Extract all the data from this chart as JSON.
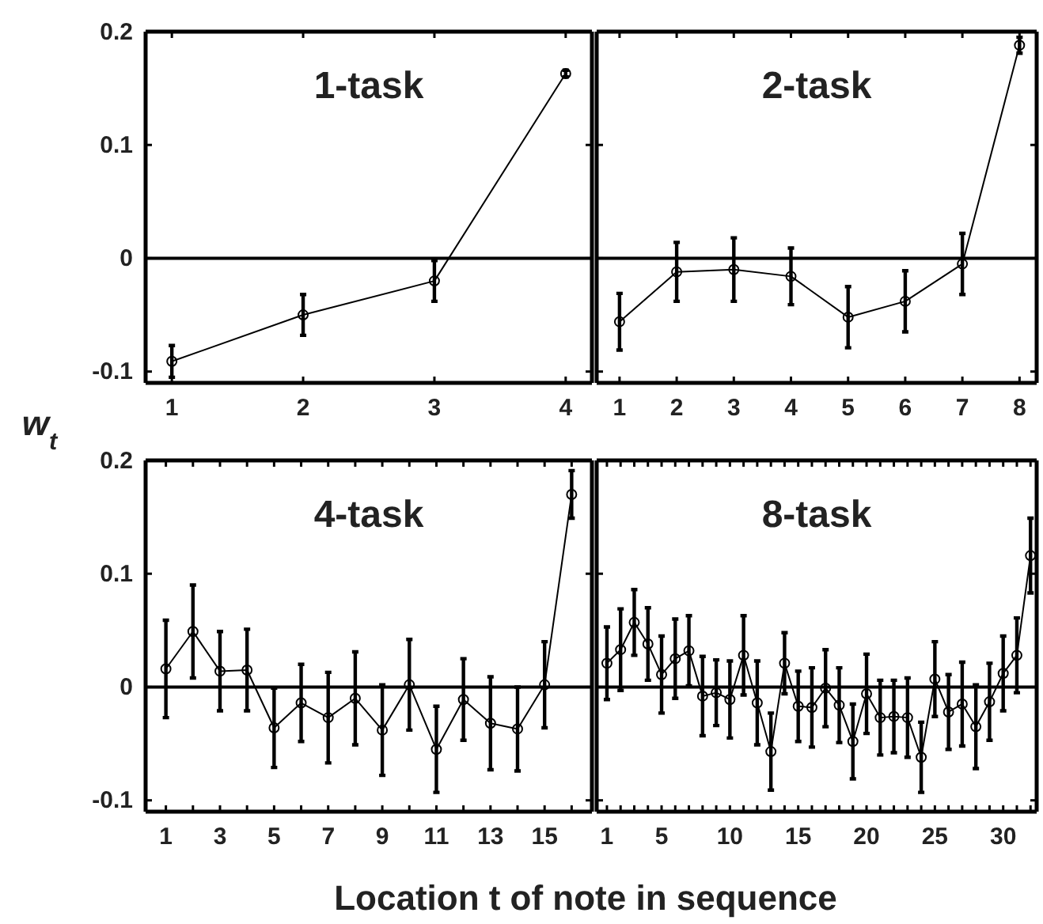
{
  "chart_data": [
    {
      "type": "line",
      "title": "1-task",
      "ylabel": "w$_{t}$",
      "x": [
        1,
        2,
        3,
        4
      ],
      "xlim": [
        0.8,
        4.2
      ],
      "xticks": [
        1,
        2,
        3,
        4
      ],
      "ylim": [
        -0.11,
        0.2
      ],
      "yticks": [
        -0.1,
        0,
        0.1,
        0.2
      ],
      "marker": "circle",
      "line_style": "solid",
      "ref_lines": [
        {
          "axis": "y",
          "value": 0
        }
      ],
      "series": [
        {
          "color": "#000000",
          "values": [
            -0.091,
            -0.05,
            -0.02,
            0.163
          ],
          "errors": [
            0.014,
            0.018,
            0.018,
            0.003
          ]
        }
      ]
    },
    {
      "type": "line",
      "title": "2-task",
      "x": [
        1,
        2,
        3,
        4,
        5,
        6,
        7,
        8
      ],
      "xlim": [
        0.6,
        8.3
      ],
      "xticks": [
        1,
        2,
        3,
        4,
        5,
        6,
        7,
        8
      ],
      "ylim": [
        -0.11,
        0.2
      ],
      "yticks": [
        -0.1,
        0,
        0.1,
        0.2
      ],
      "tick_labels": "x",
      "marker": "circle",
      "line_style": "solid",
      "ref_lines": [
        {
          "axis": "y",
          "value": 0
        }
      ],
      "series": [
        {
          "color": "#000000",
          "values": [
            -0.056,
            -0.012,
            -0.01,
            -0.016,
            -0.052,
            -0.038,
            -0.005,
            0.188
          ],
          "errors": [
            0.025,
            0.026,
            0.028,
            0.025,
            0.027,
            0.027,
            0.027,
            0.007
          ]
        }
      ]
    },
    {
      "type": "line",
      "title": "4-task",
      "xlabel": "Location t of note in sequence",
      "x": [
        1,
        2,
        3,
        4,
        5,
        6,
        7,
        8,
        9,
        10,
        11,
        12,
        13,
        14,
        15,
        16
      ],
      "xlim": [
        0.25,
        16.75
      ],
      "xticks": [
        1,
        {
          "value": 2,
          "label": null
        },
        3,
        {
          "value": 4,
          "label": null
        },
        5,
        {
          "value": 6,
          "label": null
        },
        7,
        {
          "value": 8,
          "label": null
        },
        9,
        {
          "value": 10,
          "label": null
        },
        11,
        {
          "value": 12,
          "label": null
        },
        13,
        {
          "value": 14,
          "label": null
        },
        15,
        {
          "value": 16,
          "label": null
        }
      ],
      "ylim": [
        -0.11,
        0.2
      ],
      "yticks": [
        -0.1,
        0,
        0.1,
        0.2
      ],
      "marker": "circle",
      "line_style": "solid",
      "ref_lines": [
        {
          "axis": "y",
          "value": 0
        }
      ],
      "series": [
        {
          "color": "#000000",
          "values": [
            0.016,
            0.049,
            0.014,
            0.015,
            -0.036,
            -0.014,
            -0.027,
            -0.01,
            -0.038,
            0.002,
            -0.055,
            -0.011,
            -0.032,
            -0.037,
            0.002,
            0.17
          ],
          "errors": [
            0.043,
            0.041,
            0.035,
            0.036,
            0.035,
            0.034,
            0.04,
            0.041,
            0.04,
            0.04,
            0.038,
            0.036,
            0.041,
            0.037,
            0.038,
            0.021
          ]
        }
      ]
    },
    {
      "type": "line",
      "title": "8-task",
      "x": [
        1,
        2,
        3,
        4,
        5,
        6,
        7,
        8,
        9,
        10,
        11,
        12,
        13,
        14,
        15,
        16,
        17,
        18,
        19,
        20,
        21,
        22,
        23,
        24,
        25,
        26,
        27,
        28,
        29,
        30,
        31,
        32
      ],
      "xlim": [
        0.25,
        32.45
      ],
      "xticks": [
        1,
        {
          "value": 2,
          "label": null
        },
        {
          "value": 3,
          "label": null
        },
        {
          "value": 4,
          "label": null
        },
        5,
        {
          "value": 6,
          "label": null
        },
        {
          "value": 7,
          "label": null
        },
        {
          "value": 8,
          "label": null
        },
        {
          "value": 9,
          "label": null
        },
        10,
        {
          "value": 11,
          "label": null
        },
        {
          "value": 12,
          "label": null
        },
        {
          "value": 13,
          "label": null
        },
        {
          "value": 14,
          "label": null
        },
        15,
        {
          "value": 16,
          "label": null
        },
        {
          "value": 17,
          "label": null
        },
        {
          "value": 18,
          "label": null
        },
        {
          "value": 19,
          "label": null
        },
        20,
        {
          "value": 21,
          "label": null
        },
        {
          "value": 22,
          "label": null
        },
        {
          "value": 23,
          "label": null
        },
        {
          "value": 24,
          "label": null
        },
        25,
        {
          "value": 26,
          "label": null
        },
        {
          "value": 27,
          "label": null
        },
        {
          "value": 28,
          "label": null
        },
        {
          "value": 29,
          "label": null
        },
        30,
        {
          "value": 31,
          "label": null
        },
        {
          "value": 32,
          "label": null
        }
      ],
      "ylim": [
        -0.11,
        0.2
      ],
      "yticks": [
        -0.1,
        0,
        0.1,
        0.2
      ],
      "tick_labels": "x",
      "marker": "circle",
      "line_style": "solid",
      "ref_lines": [
        {
          "axis": "y",
          "value": 0
        }
      ],
      "series": [
        {
          "color": "#000000",
          "values": [
            0.021,
            0.033,
            0.057,
            0.038,
            0.011,
            0.025,
            0.032,
            -0.008,
            -0.005,
            -0.011,
            0.028,
            -0.014,
            -0.057,
            0.021,
            -0.017,
            -0.018,
            -0.001,
            -0.016,
            -0.048,
            -0.006,
            -0.027,
            -0.026,
            -0.027,
            -0.062,
            0.007,
            -0.022,
            -0.015,
            -0.035,
            -0.013,
            0.012,
            0.028,
            0.116
          ],
          "errors": [
            0.032,
            0.036,
            0.029,
            0.032,
            0.034,
            0.035,
            0.031,
            0.035,
            0.029,
            0.034,
            0.035,
            0.037,
            0.034,
            0.027,
            0.031,
            0.035,
            0.034,
            0.033,
            0.033,
            0.035,
            0.033,
            0.032,
            0.035,
            0.031,
            0.033,
            0.033,
            0.037,
            0.037,
            0.034,
            0.033,
            0.033,
            0.033
          ]
        }
      ]
    }
  ]
}
